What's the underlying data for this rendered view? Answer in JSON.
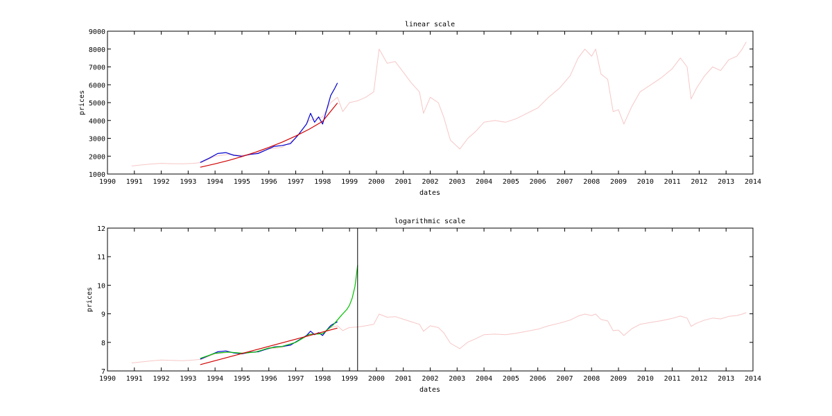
{
  "chart_data": [
    {
      "type": "line",
      "title": "linear scale",
      "xlabel": "dates",
      "ylabel": "prices",
      "xlim": [
        1990,
        2014
      ],
      "ylim": [
        1000,
        9000
      ],
      "x_ticks": [
        "1990",
        "1991",
        "1992",
        "1993",
        "1994",
        "1995",
        "1996",
        "1997",
        "1998",
        "1999",
        "2000",
        "2001",
        "2002",
        "2003",
        "2004",
        "2005",
        "2006",
        "2007",
        "2008",
        "2009",
        "2010",
        "2011",
        "2012",
        "2013",
        "2014"
      ],
      "y_ticks": [
        "1000",
        "2000",
        "3000",
        "4000",
        "5000",
        "6000",
        "7000",
        "8000",
        "9000"
      ],
      "grid": false,
      "series": [
        {
          "color": "#f7c6c6",
          "role": "full price history",
          "x": [
            1990.9,
            1991.2,
            1991.6,
            1992.0,
            1992.4,
            1992.8,
            1993.2,
            1993.5,
            1994.0,
            1994.5,
            1995.0,
            1995.5,
            1996.0,
            1996.5,
            1997.0,
            1997.5,
            1998.0,
            1998.3,
            1998.55,
            1998.75,
            1998.9,
            1999.0,
            1999.3,
            1999.6,
            1999.9,
            2000.1,
            2000.4,
            2000.7,
            2001.0,
            2001.3,
            2001.6,
            2001.75,
            2002.0,
            2002.3,
            2002.5,
            2002.75,
            2003.1,
            2003.4,
            2003.7,
            2004.0,
            2004.4,
            2004.8,
            2005.2,
            2005.6,
            2006.0,
            2006.4,
            2006.8,
            2007.2,
            2007.5,
            2007.75,
            2008.0,
            2008.15,
            2008.35,
            2008.6,
            2008.8,
            2009.0,
            2009.2,
            2009.5,
            2009.8,
            2010.2,
            2010.6,
            2011.0,
            2011.3,
            2011.55,
            2011.7,
            2011.9,
            2012.2,
            2012.5,
            2012.8,
            2013.1,
            2013.4,
            2013.6,
            2013.75
          ],
          "y": [
            1450,
            1500,
            1560,
            1600,
            1580,
            1570,
            1600,
            1650,
            2000,
            2100,
            2050,
            2150,
            2400,
            2500,
            3000,
            4000,
            4200,
            5000,
            5300,
            4500,
            4800,
            5000,
            5100,
            5300,
            5600,
            8000,
            7200,
            7300,
            6700,
            6100,
            5600,
            4400,
            5300,
            5000,
            4200,
            2900,
            2400,
            3000,
            3400,
            3900,
            4000,
            3900,
            4100,
            4400,
            4700,
            5300,
            5800,
            6500,
            7500,
            8000,
            7600,
            8000,
            6600,
            6300,
            4500,
            4600,
            3800,
            4800,
            5600,
            6000,
            6400,
            6900,
            7500,
            7000,
            5200,
            5800,
            6500,
            7000,
            6800,
            7400,
            7600,
            8000,
            8400
          ]
        },
        {
          "color": "#0000d0",
          "role": "fitted window prices",
          "x": [
            1993.45,
            1993.8,
            1994.1,
            1994.4,
            1994.7,
            1995.0,
            1995.3,
            1995.6,
            1995.9,
            1996.2,
            1996.5,
            1996.8,
            1997.1,
            1997.4,
            1997.55,
            1997.7,
            1997.85,
            1998.0,
            1998.15,
            1998.3,
            1998.45,
            1998.55
          ],
          "y": [
            1650,
            1900,
            2150,
            2200,
            2050,
            2000,
            2100,
            2150,
            2350,
            2550,
            2600,
            2700,
            3200,
            3800,
            4400,
            3900,
            4200,
            3800,
            4600,
            5400,
            5800,
            6100
          ]
        },
        {
          "color": "#d00000",
          "role": "fit curve",
          "x": [
            1993.45,
            1994.0,
            1994.5,
            1995.0,
            1995.5,
            1996.0,
            1996.5,
            1997.0,
            1997.5,
            1998.0,
            1998.55
          ],
          "y": [
            1380,
            1570,
            1760,
            1980,
            2220,
            2490,
            2790,
            3130,
            3510,
            3950,
            4980
          ]
        }
      ]
    },
    {
      "type": "line",
      "title": "logarithmic scale",
      "xlabel": "dates",
      "ylabel": "prices",
      "xlim": [
        1990,
        2014
      ],
      "ylim": [
        7,
        12
      ],
      "x_ticks": [
        "1990",
        "1991",
        "1992",
        "1993",
        "1994",
        "1995",
        "1996",
        "1997",
        "1998",
        "1999",
        "2000",
        "2001",
        "2002",
        "2003",
        "2004",
        "2005",
        "2006",
        "2007",
        "2008",
        "2009",
        "2010",
        "2011",
        "2012",
        "2013",
        "2014"
      ],
      "y_ticks": [
        "7",
        "8",
        "9",
        "10",
        "11",
        "12"
      ],
      "grid": false,
      "vline_x": 1999.3,
      "series": [
        {
          "color": "#f7c6c6",
          "role": "full price history (log)",
          "x": [
            1990.9,
            1991.2,
            1991.6,
            1992.0,
            1992.4,
            1992.8,
            1993.2,
            1993.5,
            1994.0,
            1994.5,
            1995.0,
            1995.5,
            1996.0,
            1996.5,
            1997.0,
            1997.5,
            1998.0,
            1998.3,
            1998.55,
            1998.75,
            1998.9,
            1999.0,
            1999.3,
            1999.6,
            1999.9,
            2000.1,
            2000.4,
            2000.7,
            2001.0,
            2001.3,
            2001.6,
            2001.75,
            2002.0,
            2002.3,
            2002.5,
            2002.75,
            2003.1,
            2003.4,
            2003.7,
            2004.0,
            2004.4,
            2004.8,
            2005.2,
            2005.6,
            2006.0,
            2006.4,
            2006.8,
            2007.2,
            2007.5,
            2007.75,
            2008.0,
            2008.15,
            2008.35,
            2008.6,
            2008.8,
            2009.0,
            2009.2,
            2009.5,
            2009.8,
            2010.2,
            2010.6,
            2011.0,
            2011.3,
            2011.55,
            2011.7,
            2011.9,
            2012.2,
            2012.5,
            2012.8,
            2013.1,
            2013.4,
            2013.6,
            2013.75
          ],
          "y": [
            7.28,
            7.31,
            7.35,
            7.38,
            7.37,
            7.36,
            7.38,
            7.41,
            7.6,
            7.65,
            7.63,
            7.67,
            7.78,
            7.82,
            8.01,
            8.29,
            8.34,
            8.52,
            8.58,
            8.41,
            8.48,
            8.52,
            8.54,
            8.58,
            8.63,
            8.99,
            8.88,
            8.9,
            8.81,
            8.72,
            8.63,
            8.39,
            8.58,
            8.52,
            8.34,
            7.97,
            7.78,
            8.01,
            8.13,
            8.27,
            8.29,
            8.27,
            8.32,
            8.39,
            8.46,
            8.58,
            8.67,
            8.78,
            8.92,
            8.99,
            8.94,
            8.99,
            8.8,
            8.75,
            8.41,
            8.43,
            8.24,
            8.48,
            8.63,
            8.7,
            8.76,
            8.84,
            8.92,
            8.85,
            8.56,
            8.67,
            8.78,
            8.85,
            8.82,
            8.91,
            8.94,
            8.99,
            9.04
          ]
        },
        {
          "color": "#0000d0",
          "role": "fitted window prices (log)",
          "x": [
            1993.45,
            1993.8,
            1994.1,
            1994.4,
            1994.7,
            1995.0,
            1995.3,
            1995.6,
            1995.9,
            1996.2,
            1996.5,
            1996.8,
            1997.1,
            1997.4,
            1997.55,
            1997.7,
            1997.85,
            1998.0,
            1998.15,
            1998.3,
            1998.45,
            1998.55
          ],
          "y": [
            7.41,
            7.55,
            7.67,
            7.7,
            7.63,
            7.6,
            7.65,
            7.67,
            7.76,
            7.84,
            7.86,
            7.9,
            8.07,
            8.24,
            8.39,
            8.27,
            8.34,
            8.24,
            8.43,
            8.59,
            8.67,
            8.72
          ]
        },
        {
          "color": "#00c000",
          "role": "model curve",
          "x": [
            1993.45,
            1994.0,
            1994.5,
            1995.0,
            1995.5,
            1996.0,
            1996.5,
            1997.0,
            1997.5,
            1998.0,
            1998.4,
            1998.7,
            1998.9,
            1999.0,
            1999.1,
            1999.2,
            1999.25,
            1999.3
          ],
          "y": [
            7.44,
            7.62,
            7.66,
            7.62,
            7.66,
            7.8,
            7.86,
            8.0,
            8.28,
            8.3,
            8.62,
            8.95,
            9.15,
            9.3,
            9.55,
            9.95,
            10.3,
            10.7
          ]
        },
        {
          "color": "#d00000",
          "role": "fit line",
          "x": [
            1993.45,
            1998.55
          ],
          "y": [
            7.22,
            8.5
          ]
        }
      ]
    }
  ]
}
